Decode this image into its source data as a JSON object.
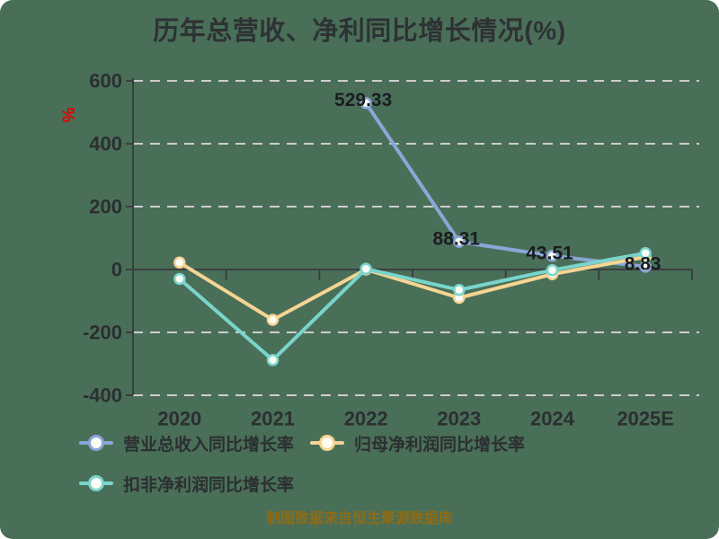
{
  "title": "历年总营收、净利同比增长情况(%)",
  "y_axis_unit": "%",
  "footer": "制图数据来自恒生聚源数据库",
  "legend": {
    "items": [
      {
        "label": "营业总收入同比增长率"
      },
      {
        "label": "归母净利润同比增长率"
      },
      {
        "label": "扣非净利润同比增长率"
      }
    ]
  },
  "chart_data": {
    "type": "line",
    "title": "历年总营收、净利同比增长情况(%)",
    "categories": [
      "2020",
      "2021",
      "2022",
      "2023",
      "2024",
      "2025E"
    ],
    "series": [
      {
        "name": "营业总收入同比增长率",
        "color": "#8aa7d8",
        "values": [
          null,
          null,
          529.33,
          88.31,
          43.51,
          8.83
        ],
        "labels": [
          null,
          null,
          "529.33",
          "88.31",
          "43.51",
          "8.83"
        ],
        "show_labels": true
      },
      {
        "name": "归母净利润同比增长率",
        "color": "#f6d493",
        "values": [
          22,
          -160,
          0,
          -90,
          -15,
          40
        ],
        "labels": null,
        "show_labels": false
      },
      {
        "name": "扣非净利润同比增长率",
        "color": "#79d5cc",
        "values": [
          -30,
          -288,
          2,
          -65,
          -2,
          52
        ],
        "labels": null,
        "show_labels": false
      }
    ],
    "ylabel": "%",
    "xlabel": "",
    "ylim": [
      -400,
      600
    ],
    "y_ticks": [
      600,
      400,
      200,
      0,
      -200,
      -400
    ],
    "grid": "horizontal-dashed",
    "legend_position": "bottom",
    "colors": {
      "background": "#4a6f58",
      "axis": "#3a3f41",
      "gridline": "#cdcdcd",
      "tick_text": "#2b2f31",
      "data_label_text": "#1a1d20",
      "title_text": "#2d3234",
      "unit_text": "#e60000",
      "footer_text": "#8d6c16",
      "marker_fill": "#fffef7"
    }
  }
}
